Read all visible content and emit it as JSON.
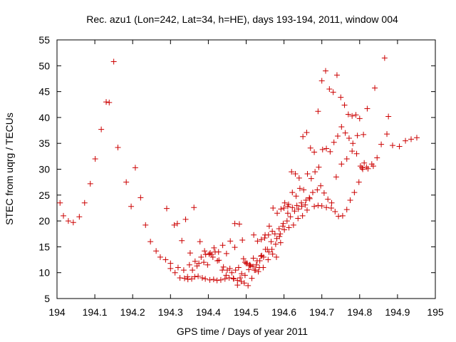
{
  "chart_data": {
    "type": "scatter",
    "title": "Rec. azu1 (Lon=242, Lat=34, h=HE), days 193-194, 2011, window 004",
    "xlabel": "GPS time / Days of year 2011",
    "ylabel": "STEC from uqrg / TECUs",
    "xlim": [
      194,
      195
    ],
    "ylim": [
      5,
      55
    ],
    "xticks": [
      "194",
      "194.1",
      "194.2",
      "194.3",
      "194.4",
      "194.5",
      "194.6",
      "194.7",
      "194.8",
      "194.9",
      "195"
    ],
    "yticks": [
      "5",
      "10",
      "15",
      "20",
      "25",
      "30",
      "35",
      "40",
      "45",
      "50",
      "55"
    ],
    "grid": false,
    "marker": "+",
    "color": "#cc0000",
    "series": [
      {
        "x": [
          194.008,
          194.017,
          194.03,
          194.043,
          194.059,
          194.073,
          194.088,
          194.101,
          194.117,
          194.13,
          194.138,
          194.15,
          194.161,
          194.183,
          194.196,
          194.207,
          194.221,
          194.234,
          194.247,
          194.262,
          194.273,
          194.287,
          194.3,
          194.312,
          194.325,
          194.337,
          194.346,
          194.356,
          194.364,
          194.373,
          194.384,
          194.392,
          194.404,
          194.414,
          194.423,
          194.433,
          194.444,
          194.455,
          194.466,
          194.477,
          194.487,
          194.497,
          194.507,
          194.518,
          194.527,
          194.536,
          194.546,
          194.556,
          194.566,
          194.576,
          194.587,
          194.597,
          194.608,
          194.617,
          194.628,
          194.638,
          194.647,
          194.656,
          194.667,
          194.676,
          194.688,
          194.697,
          194.706,
          194.716,
          194.725,
          194.735,
          194.744,
          194.755,
          194.766,
          194.775,
          194.786,
          194.798,
          194.808,
          194.818,
          194.832,
          194.846,
          194.857,
          194.872,
          194.887,
          194.905,
          194.921,
          194.936,
          194.951
        ],
        "y": [
          23.5,
          21.0,
          20.0,
          19.7,
          20.8,
          23.5,
          27.2,
          32.0,
          37.7,
          43.0,
          42.9,
          50.8,
          34.2,
          27.5,
          22.8,
          30.3,
          24.5,
          19.2,
          16.0,
          14.2,
          13.0,
          12.5,
          10.8,
          10.0,
          9.0,
          8.9,
          8.7,
          8.8,
          9.2,
          9.3,
          9.0,
          8.8,
          8.6,
          8.7,
          8.5,
          8.6,
          8.8,
          9.0,
          8.9,
          8.5,
          8.3,
          9.5,
          10.6,
          11.2,
          11.5,
          12.3,
          13.0,
          14.5,
          16.0,
          17.5,
          18.5,
          19.0,
          20.0,
          20.8,
          21.9,
          22.3,
          22.8,
          23.1,
          24.5,
          25.5,
          26.0,
          26.8,
          25.4,
          24.2,
          22.5,
          21.8,
          20.9,
          21.0,
          22.2,
          24.0,
          25.5,
          27.5,
          30.0,
          30.4,
          31.0,
          32.2,
          34.8,
          36.8,
          34.6,
          34.4,
          35.5,
          35.8,
          36.1
        ]
      },
      {
        "x": [
          194.29,
          194.31,
          194.318,
          194.33,
          194.34,
          194.352,
          194.362,
          194.378,
          194.39,
          194.402,
          194.412,
          194.424,
          194.438,
          194.448,
          194.458,
          194.47,
          194.48,
          194.493,
          194.503,
          194.512,
          194.522,
          194.532,
          194.541,
          194.551,
          194.561,
          194.571,
          194.582,
          194.592,
          194.602,
          194.612,
          194.622,
          194.632,
          194.642,
          194.652,
          194.662,
          194.672,
          194.682,
          194.692,
          194.702,
          194.712,
          194.722,
          194.732,
          194.742,
          194.752,
          194.762,
          194.772,
          194.782,
          194.792,
          194.802,
          194.812,
          194.822,
          194.836
        ],
        "y": [
          22.4,
          19.2,
          19.5,
          16.2,
          20.3,
          13.8,
          22.6,
          16.0,
          14.2,
          13.6,
          13.0,
          12.3,
          15.3,
          13.7,
          16.1,
          14.9,
          11.0,
          12.7,
          11.8,
          11.3,
          10.5,
          10.2,
          13.3,
          14.5,
          19.0,
          22.5,
          21.5,
          22.3,
          23.5,
          23.2,
          25.5,
          24.8,
          26.3,
          26.0,
          29.1,
          28.2,
          29.5,
          30.4,
          33.8,
          34.0,
          33.4,
          35.2,
          36.4,
          38.2,
          37.0,
          36.0,
          35.0,
          33.0,
          30.6,
          31.2,
          30.1,
          30.6
        ]
      },
      {
        "x": [
          194.47,
          194.482,
          194.49,
          194.5,
          194.51,
          194.52,
          194.53,
          194.54,
          194.55,
          194.56,
          194.57,
          194.58,
          194.59,
          194.6,
          194.61,
          194.62,
          194.63,
          194.64,
          194.65,
          194.66,
          194.67,
          194.68,
          194.69,
          194.7,
          194.71,
          194.72,
          194.73,
          194.74,
          194.75,
          194.76,
          194.77,
          194.78,
          194.79,
          194.8,
          194.81
        ],
        "y": [
          19.5,
          19.4,
          16.3,
          11.8,
          11.5,
          17.3,
          16.1,
          16.4,
          17.3,
          14.0,
          13.6,
          13.0,
          17.5,
          22.5,
          22.8,
          29.5,
          29.1,
          28.3,
          36.3,
          37.1,
          34.1,
          33.3,
          41.2,
          47.1,
          49.0,
          45.5,
          44.9,
          48.2,
          43.9,
          42.4,
          40.6,
          40.3,
          40.5,
          39.8,
          36.7
        ]
      },
      {
        "x": [
          194.3,
          194.32,
          194.335,
          194.35,
          194.365,
          194.375,
          194.388,
          194.398,
          194.408,
          194.418,
          194.428,
          194.44,
          194.45,
          194.462,
          194.472,
          194.484,
          194.495,
          194.505,
          194.515,
          194.525,
          194.535,
          194.545,
          194.558,
          194.568,
          194.578,
          194.588,
          194.598,
          194.61,
          194.622,
          194.634,
          194.646,
          194.658,
          194.668,
          194.68,
          194.69,
          194.7,
          194.712,
          194.726,
          194.738,
          194.752,
          194.766,
          194.78,
          194.794,
          194.806,
          194.82,
          194.84,
          194.866,
          194.876
        ],
        "y": [
          11.8,
          11.0,
          10.5,
          11.5,
          12.2,
          11.8,
          12.0,
          11.5,
          13.5,
          14.0,
          12.4,
          11.1,
          10.5,
          10.0,
          10.5,
          9.0,
          8.0,
          7.5,
          8.9,
          10.5,
          11.0,
          11.0,
          12.5,
          14.5,
          15.5,
          17.0,
          19.5,
          21.5,
          22.6,
          23.0,
          23.5,
          24.0,
          24.3,
          22.8,
          23.0,
          22.9,
          22.6,
          23.5,
          28.5,
          31.0,
          32.0,
          33.5,
          36.5,
          30.3,
          41.7,
          45.7,
          51.5,
          40.2
        ]
      },
      {
        "x": [
          194.345,
          194.358,
          194.37,
          194.381,
          194.393,
          194.405,
          194.415,
          194.427,
          194.437,
          194.447,
          194.457,
          194.467,
          194.477,
          194.488,
          194.497,
          194.509,
          194.519,
          194.529,
          194.539,
          194.549,
          194.559,
          194.569,
          194.581,
          194.591,
          194.601,
          194.613,
          194.625,
          194.637,
          194.649,
          194.661
        ],
        "y": [
          9.2,
          10.5,
          11.3,
          13.0,
          13.5,
          13.8,
          14.8,
          14.0,
          10.5,
          9.5,
          10.8,
          8.8,
          7.6,
          9.8,
          12.0,
          11.5,
          12.8,
          12.3,
          13.2,
          16.7,
          17.3,
          18.0,
          16.6,
          15.8,
          18.3,
          18.7,
          19.2,
          20.5,
          21.0,
          22.1
        ]
      }
    ]
  }
}
